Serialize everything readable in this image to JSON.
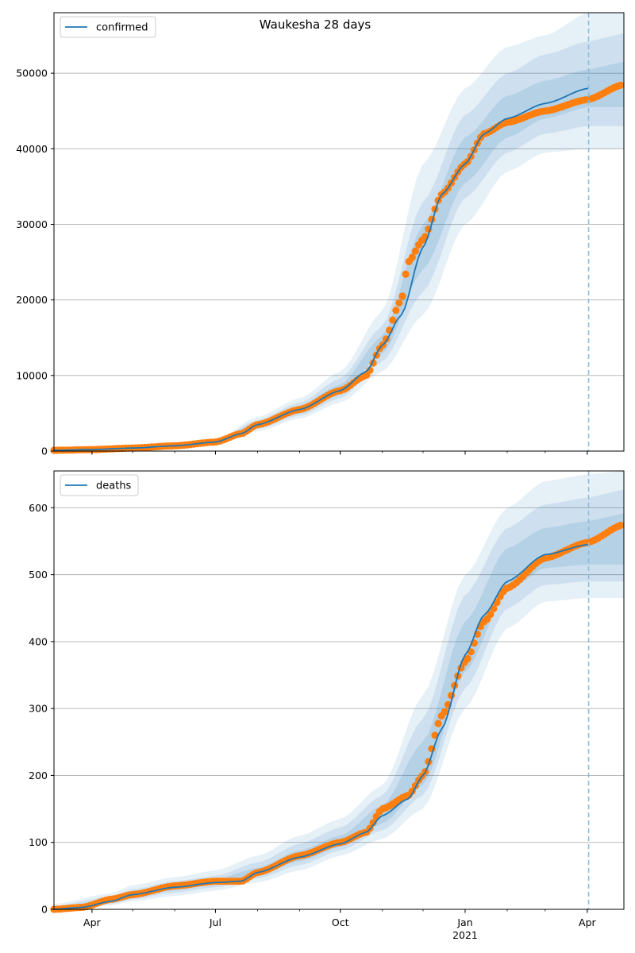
{
  "suptitle": "Waukesha 28 days",
  "x_axis": {
    "tick_labels": [
      "Apr",
      "Jul",
      "Oct",
      "Jan",
      "Apr"
    ],
    "tick_dates": [
      "2020-04-01",
      "2020-07-01",
      "2020-10-01",
      "2021-01-01",
      "2021-04-01"
    ],
    "year_label": "2021",
    "year_label_date": "2021-01-01",
    "range": [
      "2020-03-04",
      "2021-04-28"
    ],
    "minor_ticks": "monthly"
  },
  "forecast_marker": {
    "date": "2021-04-02",
    "style": "dashed",
    "color": "#8fbcd9"
  },
  "colors": {
    "model_line": "#1f77b4",
    "observed_points": "#ff7f0e",
    "band": "#1f77b4",
    "grid": "#b0b0b0"
  },
  "chart_data": [
    {
      "type": "line",
      "legend": [
        "confirmed"
      ],
      "legend_position": "upper-left",
      "grid": "horizontal",
      "ylim": [
        0,
        58000
      ],
      "yticks": [
        0,
        10000,
        20000,
        30000,
        40000,
        50000
      ],
      "model": {
        "name": "confirmed",
        "x": [
          "2020-03-04",
          "2020-04-01",
          "2020-05-01",
          "2020-06-01",
          "2020-07-01",
          "2020-07-20",
          "2020-08-01",
          "2020-09-01",
          "2020-10-01",
          "2020-10-20",
          "2020-11-01",
          "2020-11-15",
          "2020-12-01",
          "2020-12-15",
          "2021-01-01",
          "2021-01-15",
          "2021-02-01",
          "2021-03-01",
          "2021-04-02"
        ],
        "y": [
          100,
          200,
          400,
          700,
          1200,
          2300,
          3500,
          5500,
          8000,
          10500,
          14000,
          18000,
          27000,
          34000,
          38000,
          42000,
          44000,
          46000,
          48000
        ]
      },
      "bands": [
        {
          "level": "outer",
          "x": [
            "2020-03-04",
            "2020-05-01",
            "2020-07-01",
            "2020-08-01",
            "2020-09-01",
            "2020-10-01",
            "2020-11-01",
            "2020-12-01",
            "2021-01-01",
            "2021-02-01",
            "2021-03-01",
            "2021-04-02"
          ],
          "lower": [
            50,
            300,
            1000,
            2600,
            4300,
            6400,
            10500,
            18000,
            30000,
            37000,
            39500,
            40000
          ],
          "upper": [
            200,
            600,
            1500,
            4500,
            7000,
            10500,
            18500,
            38000,
            48000,
            53500,
            55000,
            58000
          ]
        },
        {
          "level": "middle",
          "x": [
            "2020-03-04",
            "2020-05-01",
            "2020-07-01",
            "2020-08-01",
            "2020-09-01",
            "2020-10-01",
            "2020-11-01",
            "2020-12-01",
            "2021-01-01",
            "2021-02-01",
            "2021-03-01",
            "2021-04-02"
          ],
          "lower": [
            70,
            330,
            1080,
            2900,
            4700,
            7000,
            11800,
            21000,
            33500,
            39500,
            42000,
            43000
          ],
          "upper": [
            160,
            540,
            1380,
            4100,
            6400,
            9600,
            16500,
            33000,
            44500,
            50000,
            52500,
            54200
          ]
        },
        {
          "level": "inner",
          "x": [
            "2020-03-04",
            "2020-05-01",
            "2020-07-01",
            "2020-08-01",
            "2020-09-01",
            "2020-10-01",
            "2020-11-01",
            "2020-12-01",
            "2021-01-01",
            "2021-02-01",
            "2021-03-01",
            "2021-04-02"
          ],
          "lower": [
            85,
            360,
            1130,
            3150,
            5000,
            7500,
            12800,
            24000,
            35500,
            41500,
            44000,
            45500
          ],
          "upper": [
            130,
            470,
            1300,
            3800,
            6000,
            8800,
            15200,
            30000,
            41500,
            47000,
            49000,
            50500
          ]
        }
      ],
      "observed": {
        "x": [
          "2020-03-04",
          "2020-04-01",
          "2020-05-01",
          "2020-06-01",
          "2020-07-01",
          "2020-07-20",
          "2020-08-01",
          "2020-09-01",
          "2020-10-01",
          "2020-10-20",
          "2020-11-01",
          "2020-11-15",
          "2020-11-20",
          "2020-12-01",
          "2020-12-15",
          "2021-01-01",
          "2021-01-15",
          "2021-02-01",
          "2021-03-01",
          "2021-04-01",
          "2021-04-28"
        ],
        "y": [
          100,
          200,
          400,
          700,
          1200,
          2300,
          3500,
          5500,
          8000,
          10000,
          14000,
          20000,
          25000,
          28000,
          34000,
          38000,
          42000,
          43500,
          45000,
          46500,
          48500
        ]
      }
    },
    {
      "type": "line",
      "legend": [
        "deaths"
      ],
      "legend_position": "upper-left",
      "grid": "horizontal",
      "ylim": [
        0,
        655
      ],
      "yticks": [
        0,
        100,
        200,
        300,
        400,
        500,
        600
      ],
      "model": {
        "name": "deaths",
        "x": [
          "2020-03-04",
          "2020-03-25",
          "2020-04-15",
          "2020-05-01",
          "2020-06-01",
          "2020-07-01",
          "2020-07-20",
          "2020-08-01",
          "2020-09-01",
          "2020-10-01",
          "2020-10-20",
          "2020-11-01",
          "2020-11-20",
          "2020-12-01",
          "2020-12-15",
          "2021-01-01",
          "2021-01-15",
          "2021-02-01",
          "2021-03-01",
          "2021-04-02"
        ],
        "y": [
          0,
          3,
          12,
          22,
          33,
          40,
          42,
          55,
          78,
          98,
          115,
          140,
          165,
          200,
          270,
          380,
          440,
          490,
          530,
          545
        ]
      },
      "bands": [
        {
          "level": "outer",
          "x": [
            "2020-03-04",
            "2020-04-15",
            "2020-05-01",
            "2020-06-01",
            "2020-07-01",
            "2020-08-01",
            "2020-09-01",
            "2020-10-01",
            "2020-11-01",
            "2020-12-01",
            "2021-01-01",
            "2021-02-01",
            "2021-03-01",
            "2021-04-02"
          ],
          "lower": [
            0,
            6,
            12,
            20,
            28,
            40,
            58,
            80,
            105,
            150,
            300,
            420,
            460,
            465
          ],
          "upper": [
            8,
            24,
            36,
            48,
            58,
            80,
            110,
            135,
            185,
            320,
            500,
            600,
            640,
            650
          ]
        },
        {
          "level": "middle",
          "x": [
            "2020-03-04",
            "2020-04-15",
            "2020-05-01",
            "2020-06-01",
            "2020-07-01",
            "2020-08-01",
            "2020-09-01",
            "2020-10-01",
            "2020-11-01",
            "2020-12-01",
            "2021-01-01",
            "2021-02-01",
            "2021-03-01",
            "2021-04-02"
          ],
          "lower": [
            0,
            8,
            15,
            25,
            33,
            46,
            66,
            88,
            118,
            170,
            330,
            450,
            485,
            490
          ],
          "upper": [
            5,
            19,
            30,
            42,
            50,
            70,
            98,
            122,
            170,
            285,
            470,
            570,
            605,
            615
          ]
        },
        {
          "level": "inner",
          "x": [
            "2020-03-04",
            "2020-04-15",
            "2020-05-01",
            "2020-06-01",
            "2020-07-01",
            "2020-08-01",
            "2020-09-01",
            "2020-10-01",
            "2020-11-01",
            "2020-12-01",
            "2021-01-01",
            "2021-02-01",
            "2021-03-01",
            "2021-04-02"
          ],
          "lower": [
            0,
            10,
            18,
            29,
            37,
            51,
            72,
            93,
            128,
            185,
            355,
            475,
            510,
            515
          ],
          "upper": [
            3,
            15,
            26,
            37,
            45,
            62,
            88,
            110,
            155,
            250,
            430,
            540,
            570,
            580
          ]
        }
      ],
      "observed": {
        "x": [
          "2020-03-04",
          "2020-03-25",
          "2020-04-15",
          "2020-05-01",
          "2020-06-01",
          "2020-07-01",
          "2020-07-20",
          "2020-08-01",
          "2020-09-01",
          "2020-10-01",
          "2020-10-20",
          "2020-11-01",
          "2020-11-20",
          "2020-12-01",
          "2020-12-15",
          "2021-01-01",
          "2021-01-15",
          "2021-02-01",
          "2021-03-01",
          "2021-04-01",
          "2021-04-28"
        ],
        "y": [
          0,
          3,
          15,
          22,
          35,
          42,
          42,
          55,
          80,
          100,
          115,
          150,
          170,
          200,
          290,
          370,
          430,
          480,
          525,
          548,
          575
        ]
      }
    }
  ]
}
